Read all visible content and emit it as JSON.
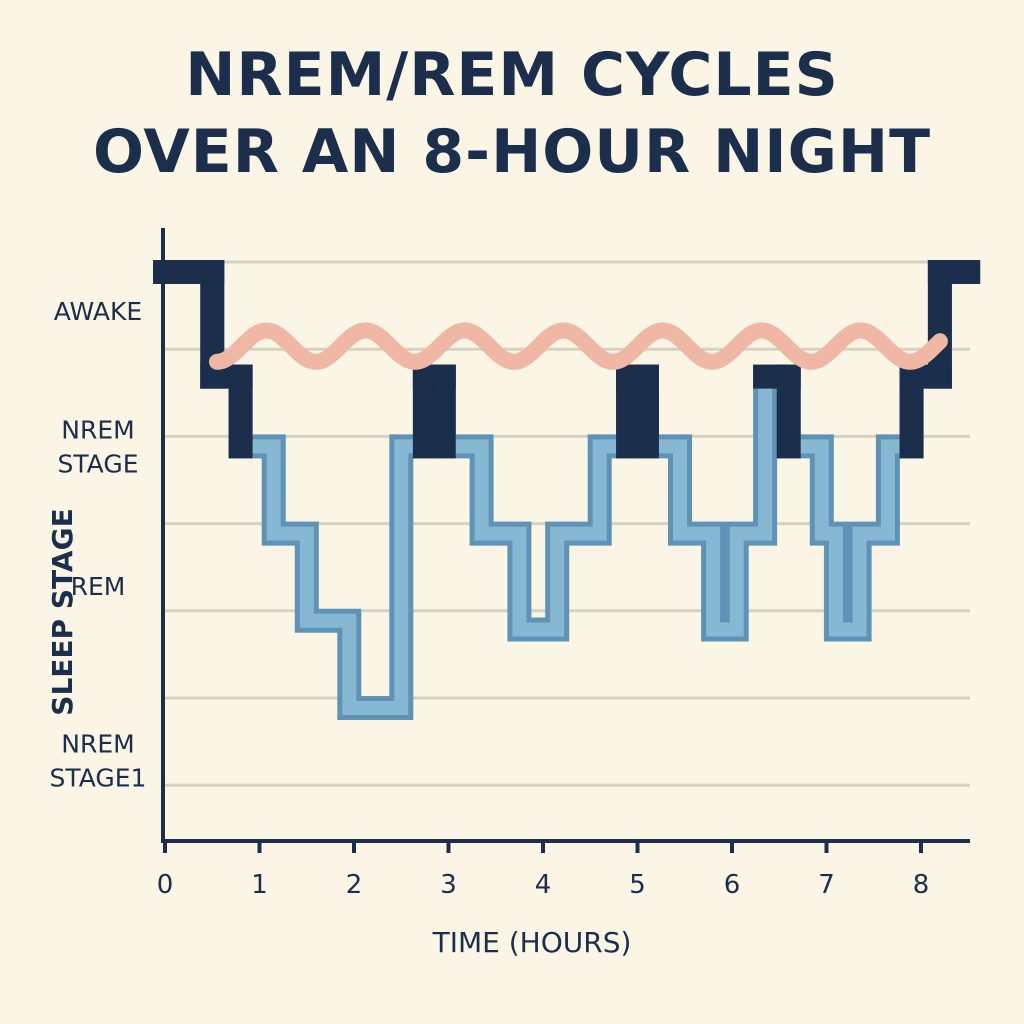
{
  "chart_data": {
    "type": "line",
    "title_lines": [
      "NREM/REM CYCLES",
      "OVER AN 8-HOUR NIGHT"
    ],
    "xlabel": "TIME (HOURS)",
    "ylabel": "SLEEP STAGE",
    "x_ticks": [
      0,
      1,
      2,
      3,
      4,
      5,
      6,
      7,
      8
    ],
    "xlim": [
      0,
      8.5
    ],
    "y_labels": [
      {
        "lines": [
          "AWAKE"
        ],
        "level": 0.45
      },
      {
        "lines": [
          "NREM",
          "STAGE"
        ],
        "level": 2
      },
      {
        "lines": [
          "REM"
        ],
        "level": 3.6
      },
      {
        "lines": [
          "NREM",
          "STAGE1"
        ],
        "level": 5.6
      }
    ],
    "grid": true,
    "hypnogram": [
      [
        0,
        0
      ],
      [
        0.5,
        0
      ],
      [
        0.5,
        1.2
      ],
      [
        0.8,
        1.2
      ],
      [
        0.8,
        2
      ],
      [
        1.15,
        2
      ],
      [
        1.15,
        3
      ],
      [
        1.5,
        3
      ],
      [
        1.5,
        4
      ],
      [
        1.95,
        4
      ],
      [
        1.95,
        5
      ],
      [
        2.5,
        5
      ],
      [
        2.5,
        2
      ],
      [
        2.75,
        2
      ],
      [
        2.75,
        1.2
      ],
      [
        2.95,
        1.2
      ],
      [
        2.95,
        2
      ],
      [
        3.35,
        2
      ],
      [
        3.35,
        3
      ],
      [
        3.75,
        3
      ],
      [
        3.75,
        4.1
      ],
      [
        4.15,
        4.1
      ],
      [
        4.15,
        3
      ],
      [
        4.6,
        3
      ],
      [
        4.6,
        2
      ],
      [
        4.9,
        2
      ],
      [
        4.9,
        1.2
      ],
      [
        5.1,
        1.2
      ],
      [
        5.1,
        2
      ],
      [
        5.45,
        2
      ],
      [
        5.45,
        3
      ],
      [
        5.8,
        3
      ],
      [
        5.8,
        4.1
      ],
      [
        6.05,
        4.1
      ],
      [
        6.05,
        3
      ],
      [
        6.35,
        3
      ],
      [
        6.35,
        1.2
      ],
      [
        6.6,
        1.2
      ],
      [
        6.6,
        2
      ],
      [
        6.95,
        2
      ],
      [
        6.95,
        3
      ],
      [
        7.1,
        3
      ],
      [
        7.1,
        4.1
      ],
      [
        7.35,
        4.1
      ],
      [
        7.35,
        3
      ],
      [
        7.65,
        3
      ],
      [
        7.65,
        2
      ],
      [
        7.9,
        2
      ],
      [
        7.9,
        1.2
      ],
      [
        8.2,
        1.2
      ],
      [
        8.2,
        0
      ],
      [
        8.5,
        0
      ]
    ],
    "rem_wave": {
      "x_start": 0.55,
      "x_end": 8.2,
      "level": 0.85,
      "amplitude": 0.18,
      "cycles": 7.3
    },
    "colors": {
      "awake_segment": "#1b2f4c",
      "light_sleep": "#5e93b7",
      "deep_sleep": "#86b8d4",
      "rem_wave": "#f0b7a4",
      "grid": "#d6d2c0",
      "axis": "#1b2f4c",
      "background": "#fbf5e6"
    }
  }
}
